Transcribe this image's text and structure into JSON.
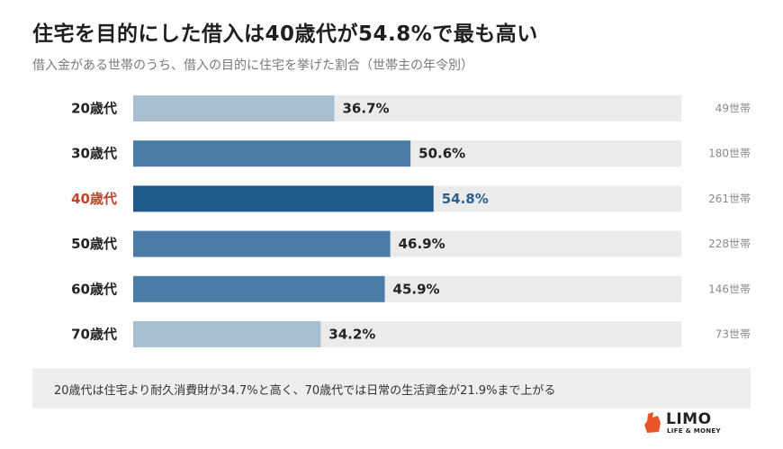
{
  "header": {
    "title": "住宅を目的にした借入は40歳代が54.8%で最も高い",
    "subtitle": "借入金がある世帯のうち、借入の目的に住宅を挙げた割合（世帯主の年令別）"
  },
  "note": {
    "text": "20歳代は住宅より耐久消費財が34.7%と高く、70歳代では日常の生活資金が21.9%まで上がる"
  },
  "logo": {
    "word": "LIMO",
    "tagline": "LIFE & MONEY"
  },
  "colors": {
    "bar_light": "#a7bfd1",
    "bar_mid": "#4a7ca5",
    "bar_dark": "#1f5a8a",
    "track": "#ebebeb",
    "highlight_label": "#c0432b",
    "highlight_value": "#2a5f8f",
    "label": "#222222",
    "value": "#222222",
    "count": "#8a8a8a",
    "logo_accent": "#e8552a"
  },
  "chart_data": {
    "type": "bar",
    "orientation": "horizontal",
    "categories": [
      "20歳代",
      "30歳代",
      "40歳代",
      "50歳代",
      "60歳代",
      "70歳代"
    ],
    "values": [
      36.7,
      50.6,
      54.8,
      46.9,
      45.9,
      34.2
    ],
    "value_labels": [
      "36.7%",
      "50.6%",
      "54.8%",
      "46.9%",
      "45.9%",
      "34.2%"
    ],
    "counts": [
      "49世帯",
      "180世帯",
      "261世帯",
      "228世帯",
      "146世帯",
      "73世帯"
    ],
    "shade": [
      "light",
      "mid",
      "dark",
      "mid",
      "mid",
      "light"
    ],
    "highlight_index": 2,
    "xlim": [
      0,
      100
    ]
  }
}
